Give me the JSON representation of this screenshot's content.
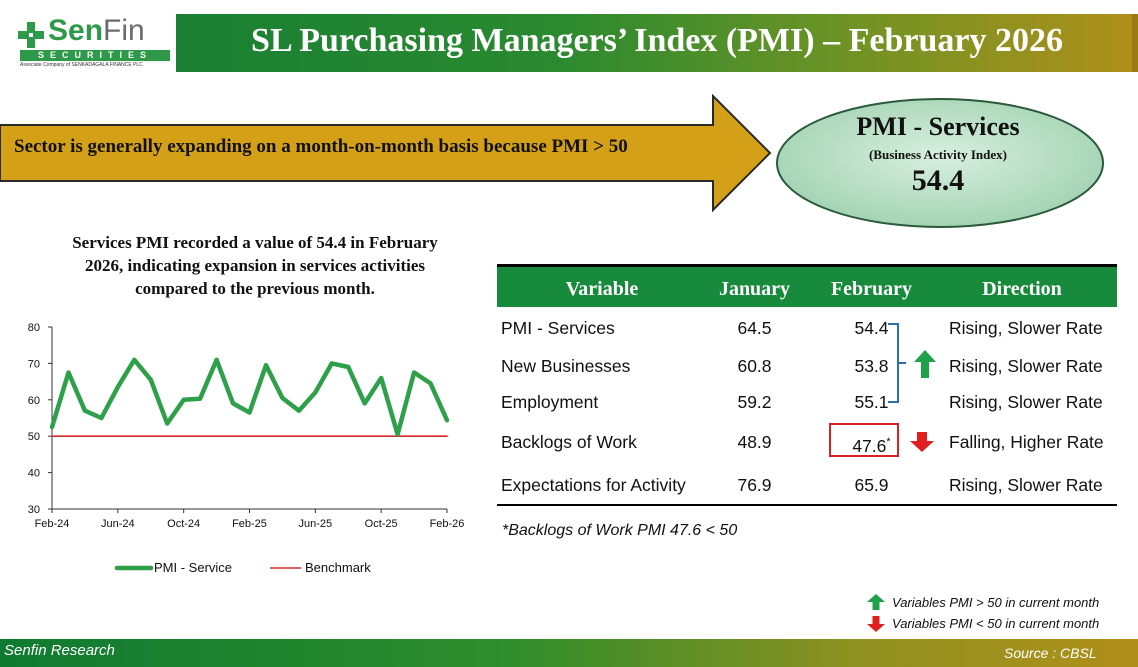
{
  "header": {
    "logo_sen": "Sen",
    "logo_fin": "Fin",
    "logo_sub": "SECURITIES",
    "logo_tagline": "Associate Company of SENKADAGALA FINANCE PLC",
    "title": "SL Purchasing Managers’ Index (PMI) – February 2026"
  },
  "banner": {
    "text": "Sector is generally expanding on a month-on-month basis because PMI > 50"
  },
  "headline_index": {
    "title": "PMI - Services",
    "subtitle": "(Business Activity Index)",
    "value": "54.4"
  },
  "commentary": "Services PMI recorded a value of 54.4 in February 2026, indicating expansion in services activities compared to the previous month.",
  "chart_data": {
    "type": "line",
    "x": [
      "Feb-24",
      "Mar-24",
      "Apr-24",
      "May-24",
      "Jun-24",
      "Jul-24",
      "Aug-24",
      "Sep-24",
      "Oct-24",
      "Nov-24",
      "Dec-24",
      "Jan-25",
      "Feb-25",
      "Mar-25",
      "Apr-25",
      "May-25",
      "Jun-25",
      "Jul-25",
      "Aug-25",
      "Sep-25",
      "Oct-25",
      "Nov-25",
      "Dec-25",
      "Jan-26",
      "Feb-26"
    ],
    "series": [
      {
        "name": "PMI - Service",
        "color": "#2ea04a",
        "values": [
          52.5,
          67.5,
          57.0,
          55.0,
          63.5,
          71.0,
          65.5,
          53.5,
          60.0,
          60.3,
          71.0,
          59.0,
          56.5,
          69.5,
          60.5,
          57.0,
          62.0,
          70.0,
          69.0,
          59.0,
          66.0,
          50.5,
          67.5,
          64.5,
          54.4
        ]
      },
      {
        "name": "Benchmark",
        "color": "#d42a2a",
        "values": [
          50,
          50,
          50,
          50,
          50,
          50,
          50,
          50,
          50,
          50,
          50,
          50,
          50,
          50,
          50,
          50,
          50,
          50,
          50,
          50,
          50,
          50,
          50,
          50,
          50
        ]
      }
    ],
    "x_tick_labels": [
      "Feb-24",
      "Jun-24",
      "Oct-24",
      "Feb-25",
      "Jun-25",
      "Oct-25",
      "Feb-26"
    ],
    "y_tick_labels": [
      "30",
      "40",
      "50",
      "60",
      "70",
      "80"
    ],
    "ylim": [
      30,
      80
    ],
    "title": "",
    "xlabel": "",
    "ylabel": "",
    "legend": [
      "PMI - Service",
      "Benchmark"
    ],
    "legend_position": "bottom"
  },
  "table": {
    "headers": [
      "Variable",
      "January",
      "February",
      "Direction"
    ],
    "rows": [
      {
        "variable": "PMI - Services",
        "january": "64.5",
        "february": "54.4",
        "direction": "Rising, Slower Rate"
      },
      {
        "variable": "New Businesses",
        "january": "60.8",
        "february": "53.8",
        "direction": "Rising, Slower Rate"
      },
      {
        "variable": "Employment",
        "january": "59.2",
        "february": "55.1",
        "direction": "Rising, Slower Rate"
      },
      {
        "variable": "Backlogs of Work",
        "january": "48.9",
        "february": "47.6",
        "direction": "Falling, Higher Rate"
      },
      {
        "variable": "Expectations for Activity",
        "january": "76.9",
        "february": "65.9",
        "direction": "Rising, Slower Rate"
      }
    ],
    "asterisk": "*",
    "footnote": "*Backlogs of Work PMI 47.6 < 50"
  },
  "legend_notes": {
    "up": "Variables PMI > 50 in current month",
    "down": "Variables PMI < 50 in current month"
  },
  "footer": {
    "left": "Senfin Research",
    "right": "Source : CBSL"
  },
  "colors": {
    "green": "#188a3c",
    "gold": "#d4a017",
    "red": "#e02020",
    "ellipse": "#b8dcc4"
  }
}
